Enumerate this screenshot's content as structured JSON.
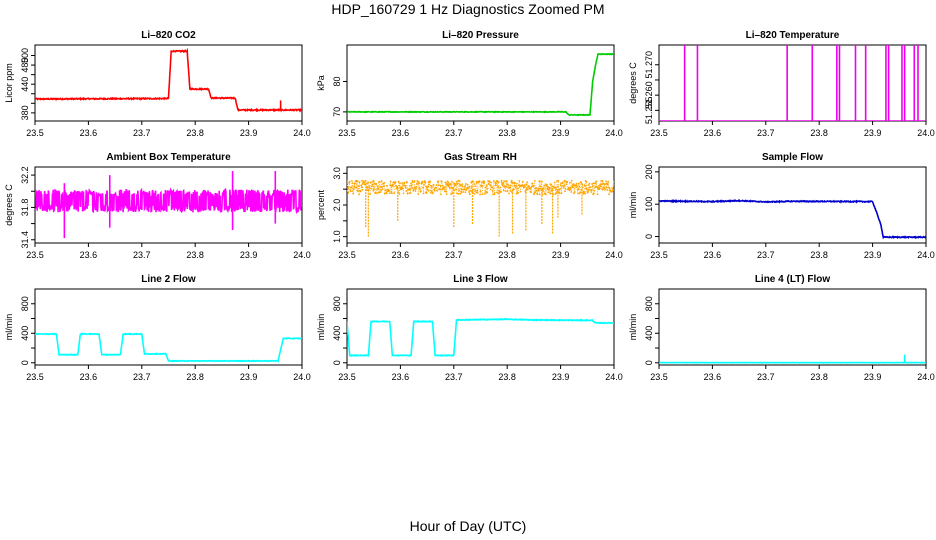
{
  "figure": {
    "title": "HDP_160729  1 Hz Diagnostics Zoomed PM",
    "xlabel": "Hour of Day (UTC)"
  },
  "chart_data": [
    {
      "id": "co2",
      "type": "line",
      "title": "Li–820 CO2",
      "ylabel": "Licor ppm",
      "color": "#ff0000",
      "xlim": [
        23.5,
        24.0
      ],
      "ylim": [
        363,
        522
      ],
      "x_ticks": [
        "23.5",
        "23.6",
        "23.7",
        "23.8",
        "23.9",
        "24.0"
      ],
      "y_ticks": [
        380,
        400,
        420,
        440,
        460,
        480,
        500
      ],
      "y_tick_labels": [
        "380",
        "",
        "",
        "440",
        "",
        "480",
        "500"
      ],
      "noise": 1.2,
      "series": [
        {
          "name": "CO2",
          "x": [
            23.5,
            23.75,
            23.755,
            23.785,
            23.79,
            23.825,
            23.83,
            23.875,
            23.88,
            24.0
          ],
          "y": [
            409,
            410,
            509,
            509,
            430,
            430,
            411,
            411,
            386,
            386
          ]
        }
      ],
      "spikes": [
        [
          23.96,
          384,
          406
        ]
      ]
    },
    {
      "id": "pressure",
      "type": "line",
      "title": "Li–820 Pressure",
      "ylabel": "kPa",
      "color": "#00cc00",
      "xlim": [
        23.5,
        24.0
      ],
      "ylim": [
        67,
        92
      ],
      "x_ticks": [
        "23.5",
        "23.6",
        "23.7",
        "23.8",
        "23.9",
        "24.0"
      ],
      "y_ticks": [
        70,
        80
      ],
      "y_tick_labels": [
        "70",
        "80"
      ],
      "noise": 0.1,
      "series": [
        {
          "name": "Pressure",
          "x": [
            23.5,
            23.91,
            23.915,
            23.955,
            23.96,
            23.965,
            23.97,
            24.0
          ],
          "y": [
            70,
            70,
            69,
            69,
            80,
            85,
            89,
            89
          ]
        }
      ]
    },
    {
      "id": "licor_temp",
      "type": "line",
      "title": "Li–820 Temperature",
      "ylabel": "degrees C",
      "color": "#ee00ee",
      "xlim": [
        23.5,
        24.0
      ],
      "ylim": [
        51.2515,
        51.2765
      ],
      "x_ticks": [
        "23.5",
        "23.6",
        "23.7",
        "23.8",
        "23.9",
        "24.0"
      ],
      "y_ticks": [
        51.255,
        51.26,
        51.265,
        51.27
      ],
      "y_tick_labels": [
        "51.255",
        "51.260",
        "",
        "51.270"
      ],
      "noise": 0,
      "series": [
        {
          "name": "Temperature",
          "x": [
            23.5,
            24.0
          ],
          "y": [
            51.2515,
            51.2515
          ]
        }
      ],
      "spikes": [
        [
          23.548,
          51.2515,
          51.2765
        ],
        [
          23.572,
          51.2515,
          51.2765
        ],
        [
          23.74,
          51.2515,
          51.2765
        ],
        [
          23.787,
          51.2515,
          51.2765
        ],
        [
          23.833,
          51.2515,
          51.2765
        ],
        [
          23.838,
          51.2515,
          51.2765
        ],
        [
          23.868,
          51.2515,
          51.2765
        ],
        [
          23.887,
          51.2515,
          51.2765
        ],
        [
          23.925,
          51.2515,
          51.2765
        ],
        [
          23.93,
          51.2515,
          51.2765
        ],
        [
          23.955,
          51.2515,
          51.2765
        ],
        [
          23.96,
          51.2515,
          51.2765
        ],
        [
          23.978,
          51.2515,
          51.2765
        ],
        [
          23.985,
          51.2515,
          51.2765
        ]
      ]
    },
    {
      "id": "ambient_temp",
      "type": "line",
      "title": "Ambient Box Temperature",
      "ylabel": "degrees C",
      "color": "#ff00ff",
      "xlim": [
        23.5,
        24.0
      ],
      "ylim": [
        31.36,
        32.3
      ],
      "x_ticks": [
        "23.5",
        "23.6",
        "23.7",
        "23.8",
        "23.9",
        "24.0"
      ],
      "y_ticks": [
        31.4,
        31.6,
        31.8,
        32.0,
        32.2
      ],
      "y_tick_labels": [
        "31.4",
        "",
        "31.8",
        "",
        "32.2"
      ],
      "noise": 0.14,
      "noise_mode": "square",
      "series": [
        {
          "name": "Ambient",
          "x": [
            23.5,
            24.0
          ],
          "y": [
            31.88,
            31.88
          ]
        }
      ],
      "spikes": [
        [
          23.555,
          31.42,
          32.1
        ],
        [
          23.64,
          31.55,
          32.2
        ],
        [
          23.87,
          31.52,
          32.25
        ],
        [
          23.95,
          31.6,
          32.25
        ]
      ]
    },
    {
      "id": "rh",
      "type": "scatter",
      "title": "Gas Stream RH",
      "ylabel": "percent",
      "color": "#ffa500",
      "xlim": [
        23.5,
        24.0
      ],
      "ylim": [
        0.8,
        3.2
      ],
      "x_ticks": [
        "23.5",
        "23.6",
        "23.7",
        "23.8",
        "23.9",
        "24.0"
      ],
      "y_ticks": [
        1.0,
        1.5,
        2.0,
        2.5,
        3.0
      ],
      "y_tick_labels": [
        "1.0",
        "",
        "2.0",
        "",
        "3.0"
      ],
      "noise": 0.22,
      "series": [
        {
          "name": "RH",
          "x": [
            23.5,
            24.0
          ],
          "y": [
            2.55,
            2.55
          ]
        }
      ],
      "spikes": [
        [
          23.535,
          1.3,
          2.5
        ],
        [
          23.54,
          1.0,
          2.5
        ],
        [
          23.595,
          1.5,
          2.5
        ],
        [
          23.7,
          1.3,
          2.5
        ],
        [
          23.735,
          1.4,
          2.5
        ],
        [
          23.785,
          1.0,
          2.5
        ],
        [
          23.81,
          1.1,
          2.5
        ],
        [
          23.835,
          1.2,
          2.5
        ],
        [
          23.865,
          1.4,
          2.5
        ],
        [
          23.885,
          1.1,
          2.5
        ],
        [
          23.895,
          1.6,
          2.5
        ],
        [
          23.94,
          1.7,
          2.5
        ]
      ]
    },
    {
      "id": "sample_flow",
      "type": "line",
      "title": "Sample Flow",
      "ylabel": "ml/min",
      "color": "#0000cc",
      "xlim": [
        23.5,
        24.0
      ],
      "ylim": [
        -20,
        215
      ],
      "x_ticks": [
        "23.5",
        "23.6",
        "23.7",
        "23.8",
        "23.9",
        "24.0"
      ],
      "y_ticks": [
        0,
        100,
        200
      ],
      "y_tick_labels": [
        "0",
        "100",
        "200"
      ],
      "noise": 1.5,
      "series": [
        {
          "name": "Sample Flow",
          "x": [
            23.5,
            23.6,
            23.65,
            23.7,
            23.75,
            23.9,
            23.915,
            23.92,
            24.0
          ],
          "y": [
            110,
            108,
            111,
            107,
            109,
            108,
            40,
            -2,
            -2
          ]
        }
      ]
    },
    {
      "id": "line2_flow",
      "type": "line",
      "title": "Line 2 Flow",
      "ylabel": "ml/min",
      "color": "#00ffff",
      "xlim": [
        23.5,
        24.0
      ],
      "ylim": [
        -30,
        1000
      ],
      "x_ticks": [
        "23.5",
        "23.6",
        "23.7",
        "23.8",
        "23.9",
        "24.0"
      ],
      "y_ticks": [
        0,
        200,
        400,
        600,
        800
      ],
      "y_tick_labels": [
        "0",
        "",
        "400",
        "",
        "800"
      ],
      "noise": 4,
      "series": [
        {
          "name": "Line 2",
          "x": [
            23.5,
            23.54,
            23.545,
            23.58,
            23.585,
            23.62,
            23.625,
            23.66,
            23.665,
            23.7,
            23.705,
            23.745,
            23.75,
            23.955,
            23.965,
            24.0
          ],
          "y": [
            390,
            390,
            110,
            110,
            390,
            390,
            110,
            110,
            390,
            390,
            120,
            120,
            25,
            25,
            330,
            330
          ]
        }
      ]
    },
    {
      "id": "line3_flow",
      "type": "line",
      "title": "Line 3 Flow",
      "ylabel": "ml/min",
      "color": "#00ffff",
      "xlim": [
        23.5,
        24.0
      ],
      "ylim": [
        -30,
        1000
      ],
      "x_ticks": [
        "23.5",
        "23.6",
        "23.7",
        "23.8",
        "23.9",
        "24.0"
      ],
      "y_ticks": [
        0,
        200,
        400,
        600,
        800
      ],
      "y_tick_labels": [
        "0",
        "",
        "400",
        "",
        "800"
      ],
      "noise": 5,
      "series": [
        {
          "name": "Line 3",
          "x": [
            23.5,
            23.505,
            23.54,
            23.545,
            23.58,
            23.585,
            23.62,
            23.625,
            23.66,
            23.665,
            23.7,
            23.705,
            23.8,
            23.85,
            23.96,
            23.965,
            24.0
          ],
          "y": [
            560,
            100,
            100,
            560,
            560,
            100,
            100,
            560,
            560,
            100,
            100,
            580,
            590,
            580,
            575,
            540,
            540
          ]
        }
      ]
    },
    {
      "id": "line4_flow",
      "type": "line",
      "title": "Line 4 (LT) Flow",
      "ylabel": "ml/min",
      "color": "#00ffff",
      "xlim": [
        23.5,
        24.0
      ],
      "ylim": [
        -30,
        1000
      ],
      "x_ticks": [
        "23.5",
        "23.6",
        "23.7",
        "23.8",
        "23.9",
        "24.0"
      ],
      "y_ticks": [
        0,
        200,
        400,
        600,
        800
      ],
      "y_tick_labels": [
        "0",
        "",
        "400",
        "",
        "800"
      ],
      "noise": 2,
      "series": [
        {
          "name": "Line 4",
          "x": [
            23.5,
            24.0
          ],
          "y": [
            2,
            2
          ]
        }
      ],
      "spikes": [
        [
          23.96,
          0,
          110
        ]
      ]
    }
  ]
}
